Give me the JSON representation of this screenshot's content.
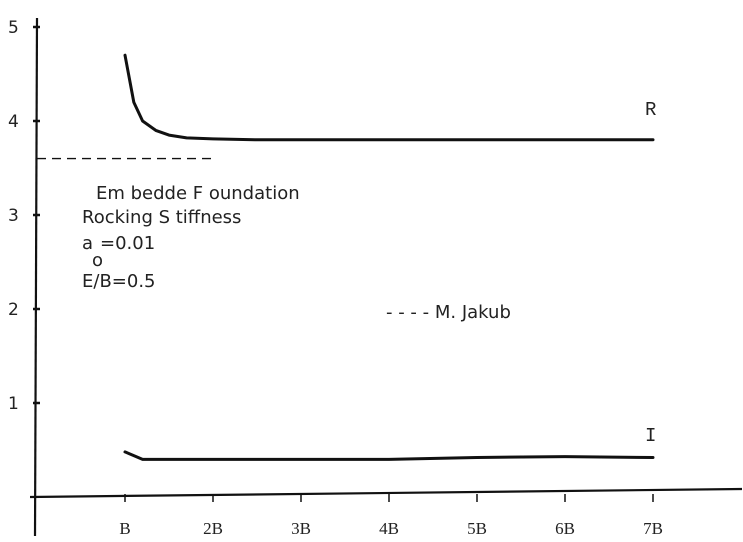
{
  "chart_data": {
    "type": "line",
    "title": "",
    "xlabel": "",
    "ylabel": "",
    "x_ticks": [
      "B",
      "2B",
      "3B",
      "4B",
      "5B",
      "6B",
      "7B"
    ],
    "y_ticks": [
      "1",
      "2",
      "3",
      "4",
      "5"
    ],
    "xlim": [
      0,
      7.5
    ],
    "ylim": [
      0,
      5
    ],
    "grid": false,
    "series": [
      {
        "name": "R",
        "line_style": "solid",
        "x": [
          1.0,
          1.05,
          1.1,
          1.2,
          1.35,
          1.5,
          1.7,
          2.0,
          2.5,
          3.0,
          4.0,
          5.0,
          6.0,
          7.0
        ],
        "y": [
          4.7,
          4.45,
          4.2,
          4.0,
          3.9,
          3.85,
          3.82,
          3.81,
          3.8,
          3.8,
          3.8,
          3.8,
          3.8,
          3.8
        ]
      },
      {
        "name": "I",
        "line_style": "solid",
        "x": [
          1.0,
          1.1,
          1.2,
          1.5,
          2.0,
          3.0,
          4.0,
          5.0,
          6.0,
          7.0
        ],
        "y": [
          0.48,
          0.44,
          0.4,
          0.4,
          0.4,
          0.4,
          0.4,
          0.42,
          0.43,
          0.42
        ]
      },
      {
        "name": "M. Jakub",
        "line_style": "dashed",
        "x": [
          0.0,
          2.0
        ],
        "y": [
          3.6,
          3.6
        ]
      }
    ],
    "annotation_lines": [
      "Em bedde F oundation",
      "Rocking S tiffness",
      "a",
      "o",
      "=0.01",
      "E/B=0.5"
    ],
    "legend_entry": "- - - - M. Jakub"
  }
}
